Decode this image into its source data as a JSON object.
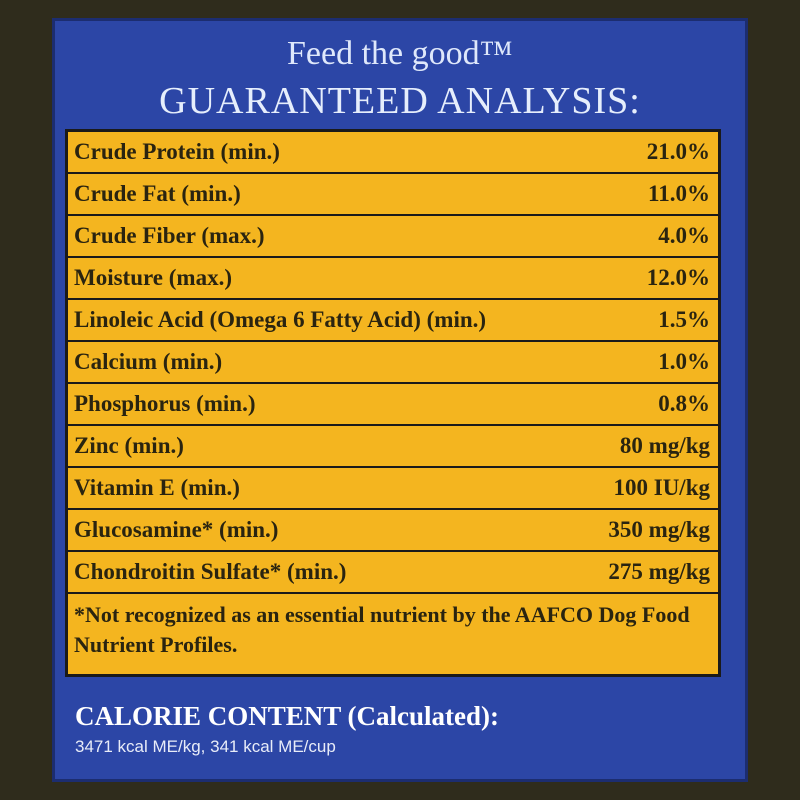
{
  "header": {
    "tagline": "Feed the good™",
    "title": "GUARANTEED ANALYSIS:"
  },
  "table": {
    "rows": [
      [
        "Crude Protein (min.)",
        "21.0%"
      ],
      [
        "Crude Fat (min.)",
        "11.0%"
      ],
      [
        "Crude Fiber (max.)",
        "4.0%"
      ],
      [
        "Moisture (max.)",
        "12.0%"
      ],
      [
        "Linoleic Acid (Omega 6 Fatty Acid) (min.)",
        "1.5%"
      ],
      [
        "Calcium (min.)",
        "1.0%"
      ],
      [
        "Phosphorus (min.)",
        "0.8%"
      ],
      [
        "Zinc (min.)",
        "80 mg/kg"
      ],
      [
        "Vitamin E (min.)",
        "100 IU/kg"
      ],
      [
        "Glucosamine* (min.)",
        "350 mg/kg"
      ],
      [
        "Chondroitin Sulfate* (min.)",
        "275 mg/kg"
      ]
    ],
    "footnote": "*Not recognized as an essential nutrient by the AAFCO Dog Food Nutrient Profiles."
  },
  "calorie": {
    "title": "CALORIE CONTENT (Calculated):",
    "text": "3471 kcal ME/kg, 341 kcal ME/cup"
  }
}
